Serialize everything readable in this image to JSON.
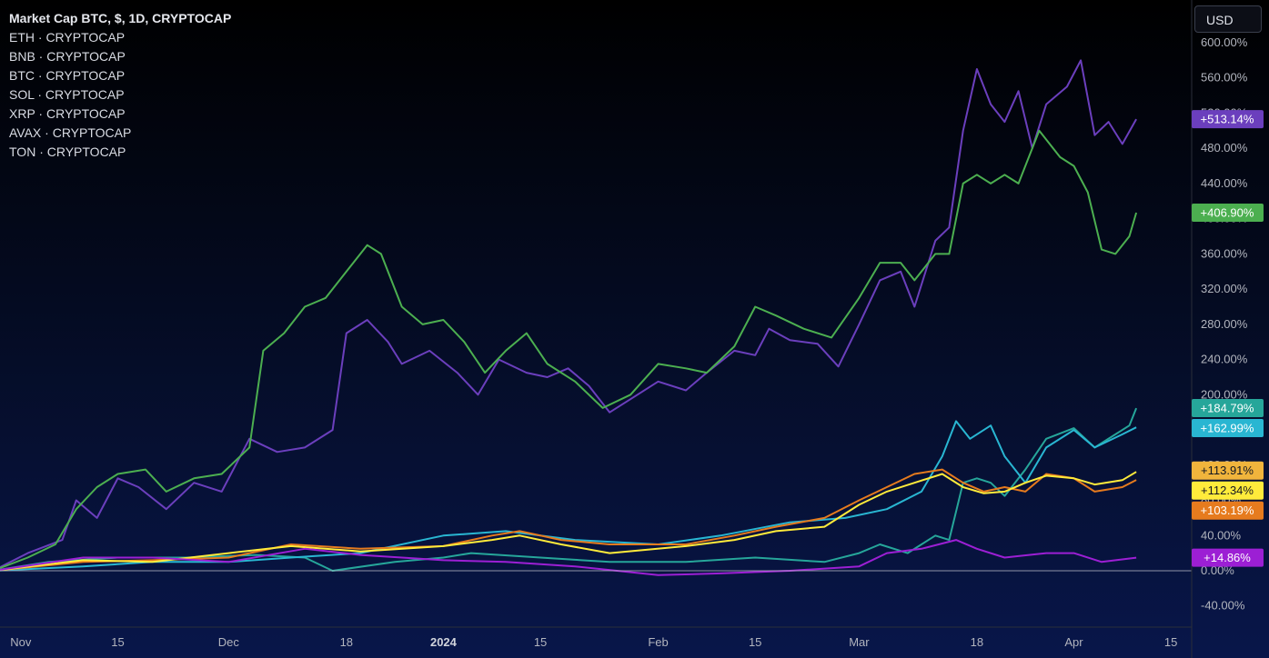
{
  "legend": {
    "title": "Market Cap BTC, $, 1D, CRYPTOCAP",
    "items": [
      "ETH · CRYPTOCAP",
      "BNB · CRYPTOCAP",
      "BTC · CRYPTOCAP",
      "SOL · CRYPTOCAP",
      "XRP · CRYPTOCAP",
      "AVAX · CRYPTOCAP",
      "TON · CRYPTOCAP"
    ]
  },
  "currency_button": {
    "label": "USD"
  },
  "chart_data": {
    "type": "line",
    "y_unit": "percent change",
    "ylim": [
      -60,
      620
    ],
    "xlim": [
      "2023-10-29",
      "2024-04-18"
    ],
    "y_ticks": [
      "600.00%",
      "560.00%",
      "520.00%",
      "480.00%",
      "440.00%",
      "400.00%",
      "360.00%",
      "320.00%",
      "280.00%",
      "240.00%",
      "200.00%",
      "160.00%",
      "120.00%",
      "80.00%",
      "40.00%",
      "0.00%",
      "-40.00%"
    ],
    "y_tick_values": [
      600,
      560,
      520,
      480,
      440,
      400,
      360,
      320,
      280,
      240,
      200,
      160,
      120,
      80,
      40,
      0,
      -40
    ],
    "x_ticks": [
      {
        "label": "Nov",
        "date": "2023-11-01"
      },
      {
        "label": "15",
        "date": "2023-11-15"
      },
      {
        "label": "Dec",
        "date": "2023-12-01"
      },
      {
        "label": "18",
        "date": "2023-12-18"
      },
      {
        "label": "2024",
        "date": "2024-01-01",
        "bold": true
      },
      {
        "label": "15",
        "date": "2024-01-15"
      },
      {
        "label": "Feb",
        "date": "2024-02-01"
      },
      {
        "label": "15",
        "date": "2024-02-15"
      },
      {
        "label": "Mar",
        "date": "2024-03-01"
      },
      {
        "label": "18",
        "date": "2024-03-18"
      },
      {
        "label": "Apr",
        "date": "2024-04-01"
      },
      {
        "label": "15",
        "date": "2024-04-15"
      }
    ],
    "series": [
      {
        "color": "#6b3fbd",
        "badge": "+513.14%",
        "points": [
          [
            "2023-10-28",
            0
          ],
          [
            "2023-11-02",
            20
          ],
          [
            "2023-11-07",
            35
          ],
          [
            "2023-11-09",
            80
          ],
          [
            "2023-11-12",
            60
          ],
          [
            "2023-11-15",
            105
          ],
          [
            "2023-11-18",
            95
          ],
          [
            "2023-11-22",
            70
          ],
          [
            "2023-11-26",
            100
          ],
          [
            "2023-11-30",
            90
          ],
          [
            "2023-12-04",
            150
          ],
          [
            "2023-12-08",
            135
          ],
          [
            "2023-12-12",
            140
          ],
          [
            "2023-12-16",
            160
          ],
          [
            "2023-12-18",
            270
          ],
          [
            "2023-12-21",
            285
          ],
          [
            "2023-12-24",
            260
          ],
          [
            "2023-12-26",
            235
          ],
          [
            "2023-12-30",
            250
          ],
          [
            "2024-01-03",
            225
          ],
          [
            "2024-01-06",
            200
          ],
          [
            "2024-01-09",
            240
          ],
          [
            "2024-01-13",
            225
          ],
          [
            "2024-01-16",
            220
          ],
          [
            "2024-01-19",
            230
          ],
          [
            "2024-01-22",
            210
          ],
          [
            "2024-01-25",
            180
          ],
          [
            "2024-01-28",
            195
          ],
          [
            "2024-02-01",
            215
          ],
          [
            "2024-02-05",
            205
          ],
          [
            "2024-02-08",
            225
          ],
          [
            "2024-02-12",
            250
          ],
          [
            "2024-02-15",
            245
          ],
          [
            "2024-02-17",
            275
          ],
          [
            "2024-02-20",
            262
          ],
          [
            "2024-02-24",
            258
          ],
          [
            "2024-02-27",
            232
          ],
          [
            "2024-03-01",
            280
          ],
          [
            "2024-03-04",
            330
          ],
          [
            "2024-03-07",
            340
          ],
          [
            "2024-03-09",
            300
          ],
          [
            "2024-03-12",
            375
          ],
          [
            "2024-03-14",
            390
          ],
          [
            "2024-03-16",
            500
          ],
          [
            "2024-03-18",
            570
          ],
          [
            "2024-03-20",
            530
          ],
          [
            "2024-03-22",
            510
          ],
          [
            "2024-03-24",
            545
          ],
          [
            "2024-03-26",
            480
          ],
          [
            "2024-03-28",
            530
          ],
          [
            "2024-03-31",
            550
          ],
          [
            "2024-04-02",
            580
          ],
          [
            "2024-04-04",
            495
          ],
          [
            "2024-04-06",
            510
          ],
          [
            "2024-04-08",
            485
          ],
          [
            "2024-04-10",
            513.14
          ]
        ]
      },
      {
        "color": "#4caf50",
        "badge": "+406.90%",
        "points": [
          [
            "2023-10-28",
            0
          ],
          [
            "2023-11-02",
            15
          ],
          [
            "2023-11-06",
            30
          ],
          [
            "2023-11-09",
            70
          ],
          [
            "2023-11-12",
            95
          ],
          [
            "2023-11-15",
            110
          ],
          [
            "2023-11-19",
            115
          ],
          [
            "2023-11-22",
            90
          ],
          [
            "2023-11-26",
            105
          ],
          [
            "2023-11-30",
            110
          ],
          [
            "2023-12-04",
            140
          ],
          [
            "2023-12-06",
            250
          ],
          [
            "2023-12-09",
            270
          ],
          [
            "2023-12-12",
            300
          ],
          [
            "2023-12-15",
            310
          ],
          [
            "2023-12-18",
            340
          ],
          [
            "2023-12-21",
            370
          ],
          [
            "2023-12-23",
            360
          ],
          [
            "2023-12-26",
            300
          ],
          [
            "2023-12-29",
            280
          ],
          [
            "2024-01-01",
            285
          ],
          [
            "2024-01-04",
            260
          ],
          [
            "2024-01-07",
            225
          ],
          [
            "2024-01-10",
            250
          ],
          [
            "2024-01-13",
            270
          ],
          [
            "2024-01-16",
            235
          ],
          [
            "2024-01-20",
            215
          ],
          [
            "2024-01-24",
            185
          ],
          [
            "2024-01-28",
            200
          ],
          [
            "2024-02-01",
            235
          ],
          [
            "2024-02-05",
            230
          ],
          [
            "2024-02-08",
            225
          ],
          [
            "2024-02-12",
            255
          ],
          [
            "2024-02-15",
            300
          ],
          [
            "2024-02-18",
            290
          ],
          [
            "2024-02-22",
            275
          ],
          [
            "2024-02-26",
            265
          ],
          [
            "2024-03-01",
            310
          ],
          [
            "2024-03-04",
            350
          ],
          [
            "2024-03-07",
            350
          ],
          [
            "2024-03-09",
            330
          ],
          [
            "2024-03-12",
            360
          ],
          [
            "2024-03-14",
            360
          ],
          [
            "2024-03-16",
            440
          ],
          [
            "2024-03-18",
            450
          ],
          [
            "2024-03-20",
            440
          ],
          [
            "2024-03-22",
            450
          ],
          [
            "2024-03-24",
            440
          ],
          [
            "2024-03-27",
            500
          ],
          [
            "2024-03-30",
            470
          ],
          [
            "2024-04-01",
            460
          ],
          [
            "2024-04-03",
            430
          ],
          [
            "2024-04-05",
            365
          ],
          [
            "2024-04-07",
            360
          ],
          [
            "2024-04-09",
            380
          ],
          [
            "2024-04-10",
            406.9
          ]
        ]
      },
      {
        "color": "#26a69a",
        "badge": "+184.79%",
        "points": [
          [
            "2023-10-28",
            0
          ],
          [
            "2023-11-05",
            10
          ],
          [
            "2023-11-15",
            15
          ],
          [
            "2023-11-25",
            15
          ],
          [
            "2023-12-05",
            18
          ],
          [
            "2023-12-12",
            15
          ],
          [
            "2023-12-16",
            0
          ],
          [
            "2023-12-25",
            10
          ],
          [
            "2024-01-01",
            15
          ],
          [
            "2024-01-05",
            20
          ],
          [
            "2024-01-15",
            15
          ],
          [
            "2024-01-25",
            10
          ],
          [
            "2024-02-05",
            10
          ],
          [
            "2024-02-15",
            15
          ],
          [
            "2024-02-25",
            10
          ],
          [
            "2024-03-01",
            20
          ],
          [
            "2024-03-04",
            30
          ],
          [
            "2024-03-08",
            20
          ],
          [
            "2024-03-12",
            40
          ],
          [
            "2024-03-14",
            35
          ],
          [
            "2024-03-16",
            100
          ],
          [
            "2024-03-18",
            105
          ],
          [
            "2024-03-20",
            100
          ],
          [
            "2024-03-22",
            85
          ],
          [
            "2024-03-25",
            115
          ],
          [
            "2024-03-28",
            150
          ],
          [
            "2024-04-01",
            162
          ],
          [
            "2024-04-04",
            140
          ],
          [
            "2024-04-07",
            155
          ],
          [
            "2024-04-09",
            165
          ],
          [
            "2024-04-10",
            184.79
          ]
        ]
      },
      {
        "color": "#29b6d2",
        "badge": "+162.99%",
        "points": [
          [
            "2023-10-28",
            0
          ],
          [
            "2023-11-10",
            5
          ],
          [
            "2023-11-20",
            10
          ],
          [
            "2023-12-01",
            10
          ],
          [
            "2023-12-10",
            15
          ],
          [
            "2023-12-20",
            20
          ],
          [
            "2024-01-01",
            40
          ],
          [
            "2024-01-10",
            45
          ],
          [
            "2024-01-20",
            35
          ],
          [
            "2024-02-01",
            30
          ],
          [
            "2024-02-10",
            40
          ],
          [
            "2024-02-20",
            55
          ],
          [
            "2024-02-28",
            60
          ],
          [
            "2024-03-05",
            70
          ],
          [
            "2024-03-10",
            90
          ],
          [
            "2024-03-13",
            130
          ],
          [
            "2024-03-15",
            170
          ],
          [
            "2024-03-17",
            150
          ],
          [
            "2024-03-20",
            165
          ],
          [
            "2024-03-22",
            130
          ],
          [
            "2024-03-25",
            100
          ],
          [
            "2024-03-28",
            140
          ],
          [
            "2024-04-01",
            160
          ],
          [
            "2024-04-04",
            140
          ],
          [
            "2024-04-08",
            155
          ],
          [
            "2024-04-10",
            162.99
          ]
        ]
      },
      {
        "color": "#e67b1e",
        "badge": "+103.19%",
        "points": [
          [
            "2023-10-28",
            0
          ],
          [
            "2023-11-10",
            10
          ],
          [
            "2023-11-20",
            12
          ],
          [
            "2023-12-01",
            15
          ],
          [
            "2023-12-10",
            30
          ],
          [
            "2023-12-20",
            25
          ],
          [
            "2024-01-01",
            28
          ],
          [
            "2024-01-08",
            40
          ],
          [
            "2024-01-12",
            45
          ],
          [
            "2024-01-18",
            35
          ],
          [
            "2024-01-25",
            30
          ],
          [
            "2024-02-05",
            30
          ],
          [
            "2024-02-12",
            40
          ],
          [
            "2024-02-18",
            50
          ],
          [
            "2024-02-25",
            60
          ],
          [
            "2024-03-01",
            80
          ],
          [
            "2024-03-05",
            95
          ],
          [
            "2024-03-09",
            110
          ],
          [
            "2024-03-13",
            115
          ],
          [
            "2024-03-16",
            100
          ],
          [
            "2024-03-19",
            90
          ],
          [
            "2024-03-22",
            95
          ],
          [
            "2024-03-25",
            90
          ],
          [
            "2024-03-28",
            110
          ],
          [
            "2024-04-01",
            105
          ],
          [
            "2024-04-04",
            90
          ],
          [
            "2024-04-08",
            95
          ],
          [
            "2024-04-10",
            103.19
          ]
        ]
      },
      {
        "color": "#ffeb3b",
        "badge": "+112.34%",
        "points": [
          [
            "2023-10-28",
            0
          ],
          [
            "2023-11-10",
            12
          ],
          [
            "2023-11-20",
            10
          ],
          [
            "2023-12-01",
            20
          ],
          [
            "2023-12-10",
            28
          ],
          [
            "2023-12-20",
            22
          ],
          [
            "2024-01-01",
            28
          ],
          [
            "2024-01-08",
            35
          ],
          [
            "2024-01-12",
            40
          ],
          [
            "2024-01-18",
            30
          ],
          [
            "2024-01-25",
            20
          ],
          [
            "2024-02-05",
            28
          ],
          [
            "2024-02-12",
            35
          ],
          [
            "2024-02-18",
            45
          ],
          [
            "2024-02-25",
            50
          ],
          [
            "2024-03-01",
            75
          ],
          [
            "2024-03-05",
            90
          ],
          [
            "2024-03-09",
            100
          ],
          [
            "2024-03-13",
            110
          ],
          [
            "2024-03-16",
            95
          ],
          [
            "2024-03-19",
            88
          ],
          [
            "2024-03-22",
            90
          ],
          [
            "2024-03-25",
            100
          ],
          [
            "2024-03-28",
            108
          ],
          [
            "2024-04-01",
            105
          ],
          [
            "2024-04-04",
            98
          ],
          [
            "2024-04-08",
            103
          ],
          [
            "2024-04-10",
            112.34
          ]
        ]
      },
      {
        "color": "#9c1fd4",
        "badge": "+14.86%",
        "points": [
          [
            "2023-10-28",
            0
          ],
          [
            "2023-11-10",
            15
          ],
          [
            "2023-11-20",
            15
          ],
          [
            "2023-12-01",
            10
          ],
          [
            "2023-12-12",
            25
          ],
          [
            "2023-12-20",
            18
          ],
          [
            "2024-01-01",
            12
          ],
          [
            "2024-01-10",
            10
          ],
          [
            "2024-01-20",
            5
          ],
          [
            "2024-02-01",
            -5
          ],
          [
            "2024-02-10",
            -3
          ],
          [
            "2024-02-20",
            0
          ],
          [
            "2024-03-01",
            5
          ],
          [
            "2024-03-05",
            20
          ],
          [
            "2024-03-10",
            25
          ],
          [
            "2024-03-15",
            35
          ],
          [
            "2024-03-18",
            25
          ],
          [
            "2024-03-22",
            15
          ],
          [
            "2024-03-28",
            20
          ],
          [
            "2024-04-01",
            20
          ],
          [
            "2024-04-05",
            10
          ],
          [
            "2024-04-10",
            14.86
          ]
        ]
      }
    ],
    "extra_badge": {
      "text": "+113.91%",
      "color": "#f0b43c",
      "value": 113.91
    }
  }
}
